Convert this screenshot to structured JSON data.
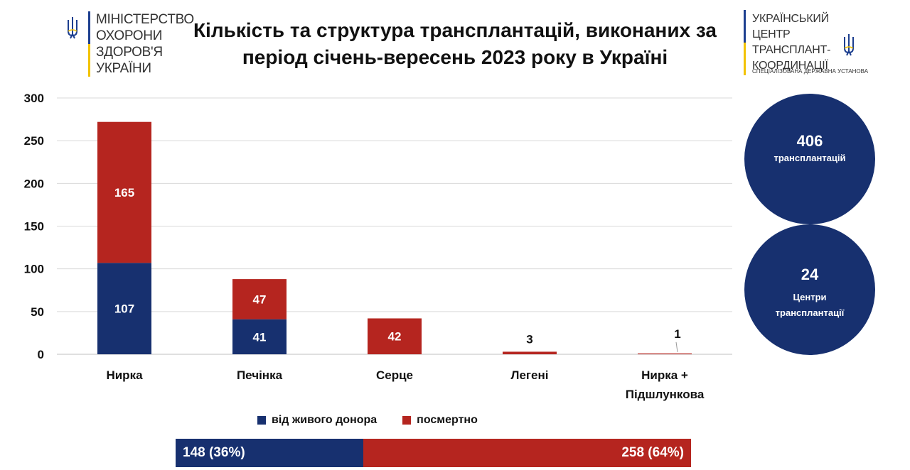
{
  "title": {
    "line1": "Кількість та структура трансплантацій, виконаних за",
    "line2": "період січень-вересень 2023 року в Україні"
  },
  "logo_left": {
    "lines": [
      "Міністерство",
      "охорони",
      "здоров'я",
      "України"
    ]
  },
  "logo_right": {
    "lines": [
      "УКРАЇНСЬКИЙ ЦЕНТР",
      "ТРАНСПЛАНТ-",
      "КООРДИНАЦІЇ"
    ],
    "subtitle": "СПЕЦІАЛІЗОВАНА ДЕРЖАВНА УСТАНОВА"
  },
  "chart_data": {
    "type": "bar",
    "stacked": true,
    "categories": [
      [
        "Нирка"
      ],
      [
        "Печінка"
      ],
      [
        "Серце"
      ],
      [
        "Легені"
      ],
      [
        "Нирка +",
        "Підшлункова"
      ]
    ],
    "series": [
      {
        "name": "від живого донора",
        "color": "#17306f",
        "values": [
          107,
          41,
          0,
          0,
          0
        ]
      },
      {
        "name": "посмертно",
        "color": "#b5251f",
        "values": [
          165,
          47,
          42,
          3,
          1
        ]
      }
    ],
    "ylim": [
      0,
      300
    ],
    "yticks": [
      0,
      50,
      100,
      150,
      200,
      250,
      300
    ],
    "grid": true,
    "legend": "bottom"
  },
  "summary": {
    "total_transplants": {
      "value": "406",
      "label": "трансплантацій"
    },
    "centers": {
      "value": "24",
      "label_line1": "Центри",
      "label_line2": "трансплантації"
    }
  },
  "totals_bar": {
    "living": {
      "value": 148,
      "label": "148 (36%)",
      "color": "#17306f"
    },
    "deceased": {
      "value": 258,
      "label": "258 (64%)",
      "color": "#b5251f"
    }
  }
}
